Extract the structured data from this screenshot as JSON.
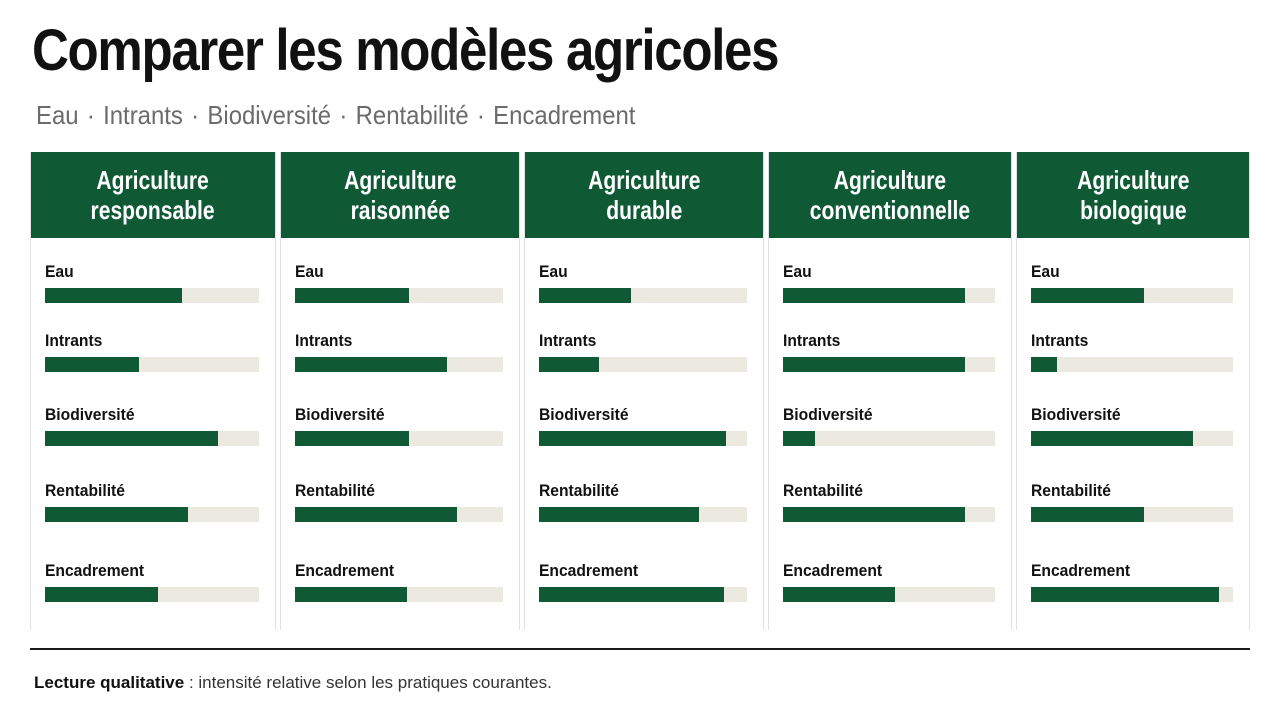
{
  "title": "Comparer les modèles agricoles",
  "subtitle": [
    "Eau",
    "Intrants",
    "Biodiversité",
    "Rentabilité",
    "Encadrement"
  ],
  "colors": {
    "accent": "#0f5a34",
    "track": "#ece9e0"
  },
  "chart_data": {
    "type": "bar",
    "metrics": [
      "Eau",
      "Intrants",
      "Biodiversité",
      "Rentabilité",
      "Encadrement"
    ],
    "scale": [
      0,
      1
    ],
    "models": [
      {
        "name": "Agriculture responsable",
        "name_lines": [
          "Agriculture",
          "responsable"
        ],
        "values": [
          0.64,
          0.44,
          0.81,
          0.67,
          0.53
        ]
      },
      {
        "name": "Agriculture raisonnée",
        "name_lines": [
          "Agriculture",
          "raisonnée"
        ],
        "values": [
          0.55,
          0.73,
          0.55,
          0.78,
          0.54
        ]
      },
      {
        "name": "Agriculture durable",
        "name_lines": [
          "Agriculture",
          "durable"
        ],
        "values": [
          0.44,
          0.29,
          0.9,
          0.77,
          0.89
        ]
      },
      {
        "name": "Agriculture conventionnelle",
        "name_lines": [
          "Agriculture",
          "conventionnelle"
        ],
        "values": [
          0.86,
          0.86,
          0.15,
          0.86,
          0.53
        ]
      },
      {
        "name": "Agriculture biologique",
        "name_lines": [
          "Agriculture",
          "biologique"
        ],
        "values": [
          0.56,
          0.13,
          0.8,
          0.56,
          0.93
        ]
      }
    ]
  },
  "footnote": {
    "bold": "Lecture qualitative",
    "rest": " : intensité relative selon les pratiques courantes."
  }
}
